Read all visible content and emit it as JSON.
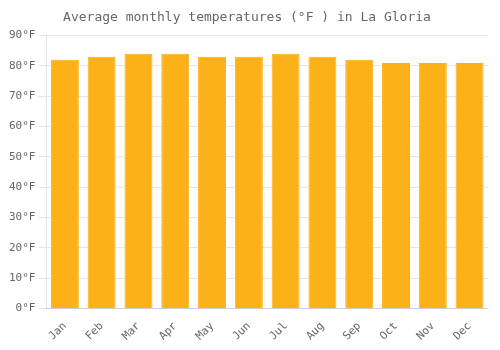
{
  "chart_data": {
    "type": "bar",
    "title": "Average monthly temperatures (°F ) in La Gloria",
    "categories": [
      "Jan",
      "Feb",
      "Mar",
      "Apr",
      "May",
      "Jun",
      "Jul",
      "Aug",
      "Sep",
      "Oct",
      "Nov",
      "Dec"
    ],
    "values": [
      82,
      83,
      84,
      84,
      83,
      83,
      84,
      83,
      82,
      81,
      81,
      81
    ],
    "color": "#FBB117",
    "ylim": [
      0,
      90
    ],
    "yticks": [
      {
        "value": 0,
        "label": "0°F"
      },
      {
        "value": 10,
        "label": "10°F"
      },
      {
        "value": 20,
        "label": "20°F"
      },
      {
        "value": 30,
        "label": "30°F"
      },
      {
        "value": 40,
        "label": "40°F"
      },
      {
        "value": 50,
        "label": "50°F"
      },
      {
        "value": 60,
        "label": "60°F"
      },
      {
        "value": 70,
        "label": "70°F"
      },
      {
        "value": 80,
        "label": "80°F"
      },
      {
        "value": 90,
        "label": "90°F"
      }
    ],
    "grid": true
  }
}
